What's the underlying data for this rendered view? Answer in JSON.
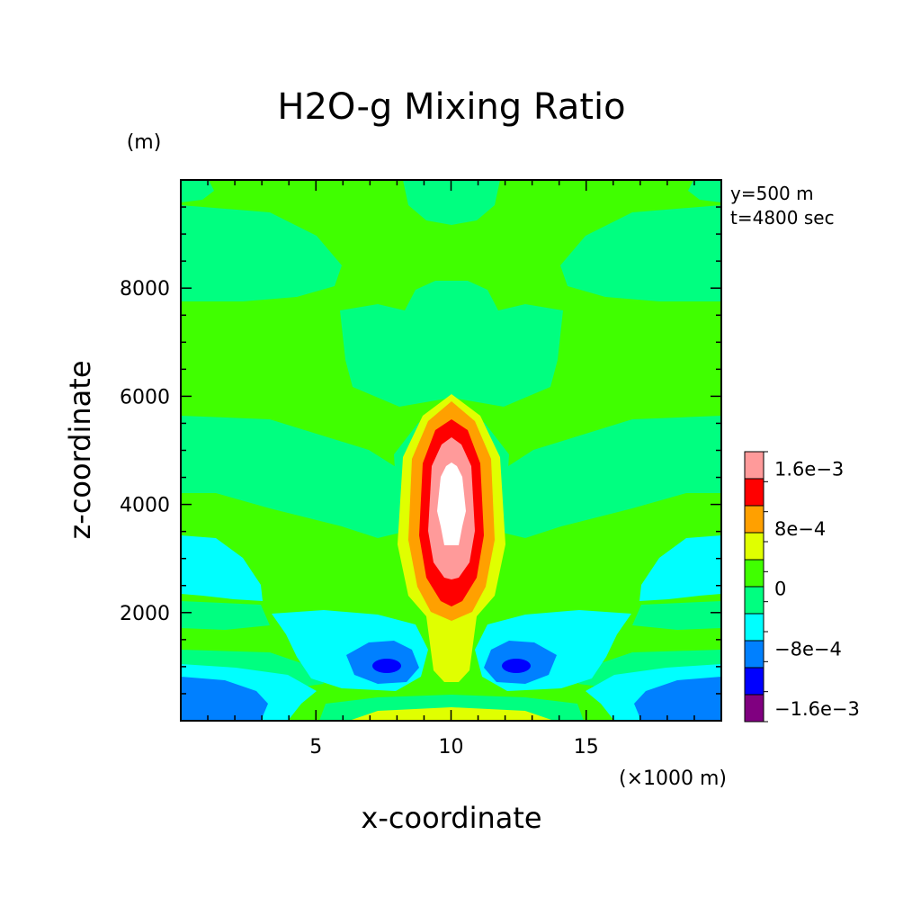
{
  "chart_data": {
    "type": "contour",
    "title": "H2O-g Mixing Ratio",
    "xlabel": "x-coordinate",
    "ylabel": "z-coordinate",
    "x_unit": "(×1000 m)",
    "y_unit": "(m)",
    "annotations": [
      "y=500 m",
      "t=4800 sec"
    ],
    "xlim": [
      0,
      20
    ],
    "ylim": [
      0,
      10000
    ],
    "x_ticks": [
      5,
      10,
      15
    ],
    "y_ticks": [
      2000,
      4000,
      6000,
      8000
    ],
    "grid": false,
    "legend_position": "right",
    "colorbar": {
      "levels": [
        -0.0016,
        -0.0012,
        -0.0008,
        -0.0004,
        0,
        0.0004,
        0.0008,
        0.0012,
        0.0016,
        0.002
      ],
      "colors": [
        "#800080",
        "#0000ff",
        "#0080ff",
        "#00ffff",
        "#00ff80",
        "#40ff00",
        "#e0ff00",
        "#ffa000",
        "#ff0000",
        "#ff9a9a"
      ],
      "labels": [
        {
          "level": -0.0016,
          "text": "−1.6e−3"
        },
        {
          "level": -0.0008,
          "text": "−8e−4"
        },
        {
          "level": 0,
          "text": "0"
        },
        {
          "level": 0.0008,
          "text": "8e−4"
        },
        {
          "level": 0.0016,
          "text": "1.6e−3"
        }
      ],
      "above_max_color": "#ffffff"
    },
    "field_regions": [
      {
        "name": "background",
        "value_band": "0 to 4e-4",
        "color": "#40ff00"
      },
      {
        "name": "upper-central-plume",
        "value_band": "-4e-4 to 0",
        "color": "#00ff80",
        "x_range": [
          6,
          14
        ],
        "z_range": [
          6000,
          8000
        ]
      },
      {
        "name": "left-upper-lobe",
        "value_band": "-4e-4 to 0",
        "color": "#00ff80",
        "x_range": [
          0,
          6
        ],
        "z_range": [
          8200,
          10000
        ]
      },
      {
        "name": "right-upper-lobe",
        "value_band": "-4e-4 to 0",
        "color": "#00ff80",
        "x_range": [
          14,
          20
        ],
        "z_range": [
          8200,
          10000
        ]
      },
      {
        "name": "left-mid-band",
        "value_band": "-4e-4 to 0",
        "color": "#00ff80",
        "x_range": [
          0,
          7
        ],
        "z_range": [
          3700,
          5000
        ]
      },
      {
        "name": "right-mid-band",
        "value_band": "-4e-4 to 0",
        "color": "#00ff80",
        "x_range": [
          13,
          20
        ],
        "z_range": [
          3700,
          5000
        ]
      },
      {
        "name": "central-core",
        "value_band": "above 2e-3",
        "color": "#ffffff",
        "x_range": [
          9.5,
          10.5
        ],
        "z_range": [
          3300,
          4800
        ]
      },
      {
        "name": "left-low-minimum",
        "value_band": "-1.6e-3 to -1.2e-3",
        "color": "#0000ff",
        "x_range": [
          7.3,
          8.3
        ],
        "z_range": [
          900,
          1200
        ]
      },
      {
        "name": "right-low-minimum",
        "value_band": "-1.6e-3 to -1.2e-3",
        "color": "#0000ff",
        "x_range": [
          11.7,
          12.7
        ],
        "z_range": [
          900,
          1200
        ]
      },
      {
        "name": "bottom-center-strip",
        "value_band": "4e-4 to 8e-4",
        "color": "#e0ff00",
        "x_range": [
          7,
          13
        ],
        "z_range": [
          0,
          200
        ]
      }
    ]
  }
}
